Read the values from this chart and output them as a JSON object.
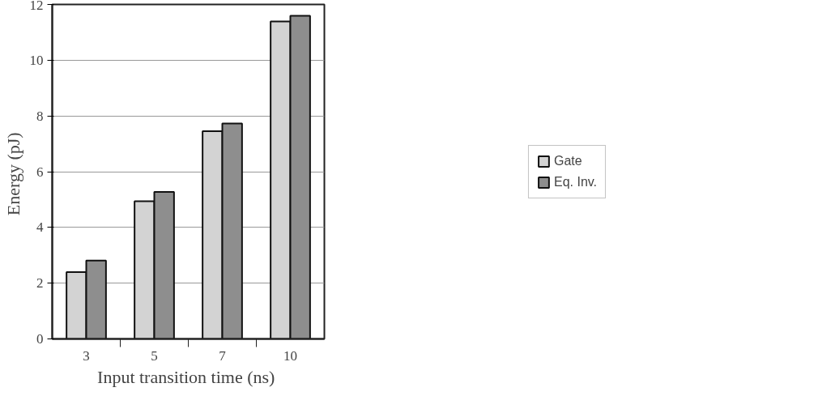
{
  "chart_data": {
    "type": "bar",
    "xlabel": "Input transition time  (ns)",
    "ylabel": "Energy  (pJ)",
    "categories": [
      "3",
      "5",
      "7",
      "10"
    ],
    "series": [
      {
        "name": "Gate",
        "color": "#d3d3d3",
        "values": [
          2.4,
          4.94,
          7.45,
          11.39
        ]
      },
      {
        "name": "Eq. Inv.",
        "color": "#8e8e8e",
        "values": [
          2.81,
          5.27,
          7.73,
          11.59
        ]
      }
    ],
    "ylim": [
      0,
      12
    ],
    "yticks": [
      0,
      2,
      4,
      6,
      8,
      10,
      12
    ],
    "grid": "y",
    "legend": "right"
  }
}
